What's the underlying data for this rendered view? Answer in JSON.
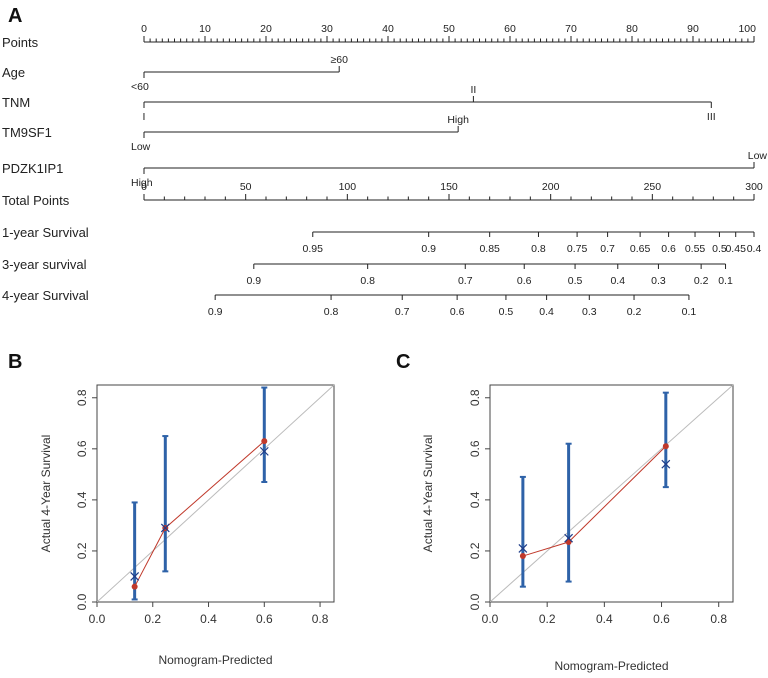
{
  "panels": {
    "a": "A",
    "b": "B",
    "c": "C"
  },
  "chart_data": [
    {
      "type": "nomogram",
      "panel": "A",
      "rows": [
        {
          "name": "Points",
          "kind": "points",
          "min": 0,
          "max": 100,
          "labels": [
            "0",
            "10",
            "20",
            "30",
            "40",
            "50",
            "60",
            "70",
            "80",
            "90",
            "100"
          ]
        },
        {
          "name": "Age",
          "kind": "var",
          "points": [
            0,
            32
          ],
          "levels": [
            {
              "label": "<60",
              "pts": 0,
              "pos": "below"
            },
            {
              "label": "≥60",
              "pts": 32,
              "pos": "above"
            }
          ]
        },
        {
          "name": "TNM",
          "kind": "var",
          "points": [
            0,
            93
          ],
          "levels": [
            {
              "label": "I",
              "pts": 0,
              "pos": "below"
            },
            {
              "label": "II",
              "pts": 54,
              "pos": "above"
            },
            {
              "label": "III",
              "pts": 93,
              "pos": "below"
            }
          ]
        },
        {
          "name": "TM9SF1",
          "kind": "var",
          "points": [
            0,
            51.5
          ],
          "levels": [
            {
              "label": "Low",
              "pts": 0,
              "pos": "below"
            },
            {
              "label": "High",
              "pts": 51.5,
              "pos": "above"
            }
          ]
        },
        {
          "name": "PDZK1IP1",
          "kind": "var",
          "points": [
            0,
            100
          ],
          "levels": [
            {
              "label": "High",
              "pts": 0,
              "pos": "below"
            },
            {
              "label": "Low",
              "pts": 100,
              "pos": "above"
            }
          ]
        },
        {
          "name": "Total Points",
          "kind": "total",
          "min": 0,
          "max": 300,
          "labels": [
            "0",
            "50",
            "100",
            "150",
            "200",
            "250",
            "300"
          ]
        },
        {
          "name": "1-year Survival",
          "kind": "survival",
          "ticks": [
            {
              "label": "0.95",
              "total": 83
            },
            {
              "label": "0.9",
              "total": 140
            },
            {
              "label": "0.85",
              "total": 170
            },
            {
              "label": "0.8",
              "total": 194
            },
            {
              "label": "0.75",
              "total": 213
            },
            {
              "label": "0.7",
              "total": 228
            },
            {
              "label": "0.65",
              "total": 244
            },
            {
              "label": "0.6",
              "total": 258
            },
            {
              "label": "0.55",
              "total": 271
            },
            {
              "label": "0.5",
              "total": 283
            },
            {
              "label": "0.45",
              "total": 291
            },
            {
              "label": "0.4",
              "total": 300
            }
          ]
        },
        {
          "name": "3-year survival",
          "kind": "survival",
          "ticks": [
            {
              "label": "0.9",
              "total": 54
            },
            {
              "label": "0.8",
              "total": 110
            },
            {
              "label": "0.7",
              "total": 158
            },
            {
              "label": "0.6",
              "total": 187
            },
            {
              "label": "0.5",
              "total": 212
            },
            {
              "label": "0.4",
              "total": 233
            },
            {
              "label": "0.3",
              "total": 253
            },
            {
              "label": "0.2",
              "total": 274
            },
            {
              "label": "0.1",
              "total": 286
            }
          ]
        },
        {
          "name": "4-year Survival",
          "kind": "survival",
          "ticks": [
            {
              "label": "0.9",
              "total": 35
            },
            {
              "label": "0.8",
              "total": 92
            },
            {
              "label": "0.7",
              "total": 127
            },
            {
              "label": "0.6",
              "total": 154
            },
            {
              "label": "0.5",
              "total": 178
            },
            {
              "label": "0.4",
              "total": 198
            },
            {
              "label": "0.3",
              "total": 219
            },
            {
              "label": "0.2",
              "total": 241
            },
            {
              "label": "0.1",
              "total": 268
            }
          ]
        }
      ]
    },
    {
      "type": "calibration",
      "panel": "B",
      "xlabel": "Nomogram-Predicted",
      "ylabel": "Actual 4-Year Survival",
      "xlim": [
        0,
        0.85
      ],
      "ylim": [
        0,
        0.85
      ],
      "ticks": [
        "0.0",
        "0.2",
        "0.4",
        "0.6",
        "0.8"
      ],
      "points": [
        {
          "x": 0.135,
          "y": 0.06,
          "corrected": 0.1,
          "lo": 0.01,
          "hi": 0.39
        },
        {
          "x": 0.245,
          "y": 0.29,
          "corrected": 0.29,
          "lo": 0.12,
          "hi": 0.65
        },
        {
          "x": 0.6,
          "y": 0.63,
          "corrected": 0.59,
          "lo": 0.47,
          "hi": 0.84
        }
      ]
    },
    {
      "type": "calibration",
      "panel": "C",
      "xlabel": "Nomogram-Predicted",
      "ylabel": "Actual 4-Year Survival",
      "xlim": [
        0,
        0.85
      ],
      "ylim": [
        0,
        0.85
      ],
      "ticks": [
        "0.0",
        "0.2",
        "0.4",
        "0.6",
        "0.8"
      ],
      "points": [
        {
          "x": 0.115,
          "y": 0.18,
          "corrected": 0.21,
          "lo": 0.06,
          "hi": 0.49
        },
        {
          "x": 0.275,
          "y": 0.235,
          "corrected": 0.25,
          "lo": 0.08,
          "hi": 0.62
        },
        {
          "x": 0.615,
          "y": 0.61,
          "corrected": 0.54,
          "lo": 0.45,
          "hi": 0.82
        }
      ]
    }
  ],
  "colors": {
    "bar": "#2e62a8",
    "line": "#c0392b",
    "dot": "#c0392b",
    "cross": "#1f3c88",
    "ideal": "#bbbbbb"
  }
}
